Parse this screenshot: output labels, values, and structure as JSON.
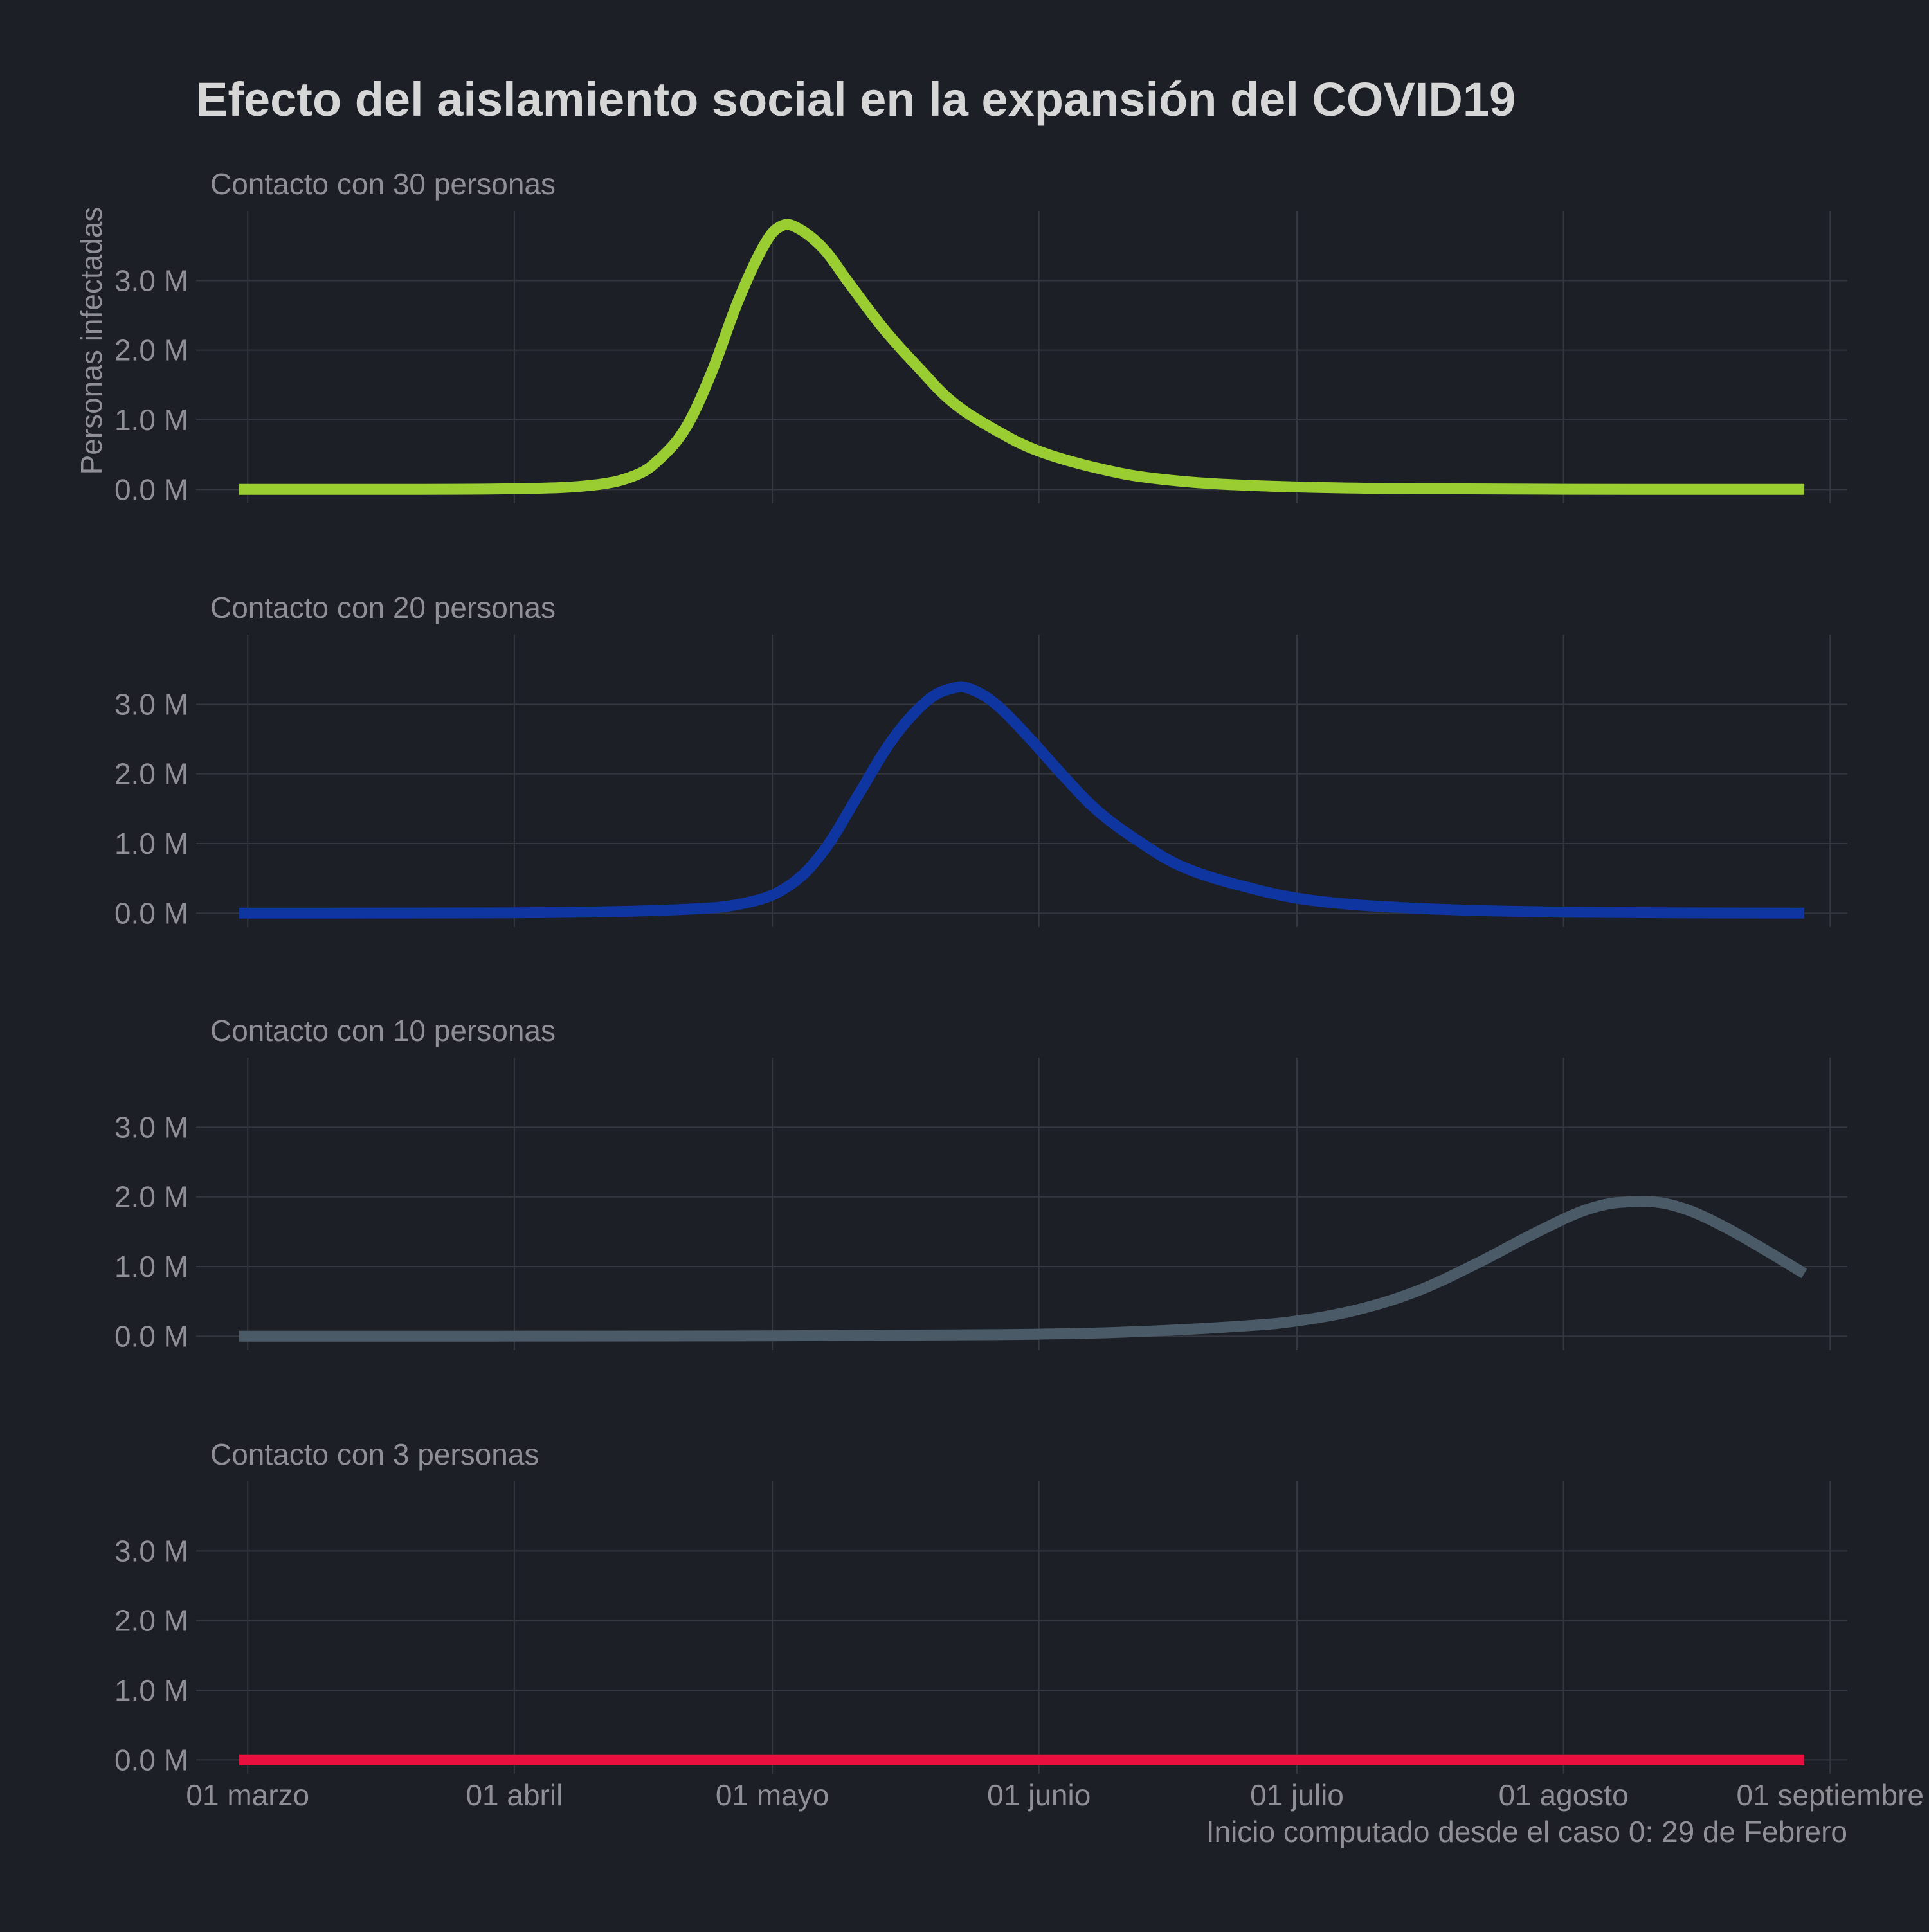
{
  "chart_data": {
    "type": "line",
    "title": "Efecto del aislamiento social en la expansión del COVID19",
    "ylabel": "Personas infectadas",
    "caption": "Inicio computado desde el caso 0: 29 de Febrero",
    "x_ticks": [
      "01 marzo",
      "01 abril",
      "01 mayo",
      "01 junio",
      "01 julio",
      "01 agosto",
      "01 septiembre"
    ],
    "x_tick_dates": [
      "2020-03-01",
      "2020-04-01",
      "2020-05-01",
      "2020-06-01",
      "2020-07-01",
      "2020-08-01",
      "2020-09-01"
    ],
    "x_range": [
      "2020-02-24",
      "2020-09-03"
    ],
    "y_ticks": [
      "0.0 M",
      "1.0 M",
      "2.0 M",
      "3.0 M"
    ],
    "y_tick_values": [
      0,
      1000000,
      2000000,
      3000000
    ],
    "ylim": [
      -200000,
      4000000
    ],
    "grid": true,
    "panels": [
      {
        "label": "Contacto con 30 personas",
        "color": "#9acd32",
        "x": [
          "2020-02-29",
          "2020-03-15",
          "2020-04-01",
          "2020-04-10",
          "2020-04-15",
          "2020-04-18",
          "2020-04-21",
          "2020-04-24",
          "2020-04-27",
          "2020-04-30",
          "2020-05-02",
          "2020-05-04",
          "2020-05-07",
          "2020-05-10",
          "2020-05-14",
          "2020-05-18",
          "2020-05-22",
          "2020-05-27",
          "2020-06-01",
          "2020-06-08",
          "2020-06-15",
          "2020-06-25",
          "2020-07-10",
          "2020-08-01",
          "2020-08-29"
        ],
        "y": [
          0,
          0,
          10000,
          60000,
          200000,
          450000,
          900000,
          1700000,
          2700000,
          3500000,
          3780000,
          3750000,
          3450000,
          2950000,
          2300000,
          1750000,
          1250000,
          850000,
          550000,
          300000,
          150000,
          60000,
          15000,
          2000,
          0
        ]
      },
      {
        "label": "Contacto con 20 personas",
        "color": "#0f35a0",
        "x": [
          "2020-02-29",
          "2020-04-01",
          "2020-04-20",
          "2020-04-28",
          "2020-05-03",
          "2020-05-07",
          "2020-05-11",
          "2020-05-15",
          "2020-05-19",
          "2020-05-22",
          "2020-05-24",
          "2020-05-27",
          "2020-05-31",
          "2020-06-04",
          "2020-06-08",
          "2020-06-13",
          "2020-06-18",
          "2020-06-25",
          "2020-07-03",
          "2020-07-15",
          "2020-08-01",
          "2020-08-29"
        ],
        "y": [
          0,
          5000,
          50000,
          150000,
          400000,
          900000,
          1700000,
          2500000,
          3050000,
          3230000,
          3220000,
          3000000,
          2500000,
          1950000,
          1450000,
          1000000,
          650000,
          380000,
          180000,
          70000,
          15000,
          0
        ]
      },
      {
        "label": "Contacto con 10 personas",
        "color": "#4a5b67",
        "x": [
          "2020-02-29",
          "2020-05-01",
          "2020-06-01",
          "2020-06-15",
          "2020-06-25",
          "2020-07-01",
          "2020-07-08",
          "2020-07-15",
          "2020-07-22",
          "2020-07-29",
          "2020-08-04",
          "2020-08-09",
          "2020-08-14",
          "2020-08-20",
          "2020-08-29"
        ],
        "y": [
          0,
          5000,
          30000,
          80000,
          150000,
          220000,
          380000,
          650000,
          1050000,
          1500000,
          1830000,
          1930000,
          1870000,
          1550000,
          900000
        ]
      },
      {
        "label": "Contacto con 3 personas",
        "color": "#e8103e",
        "x": [
          "2020-02-29",
          "2020-08-29"
        ],
        "y": [
          0,
          0
        ]
      }
    ]
  }
}
